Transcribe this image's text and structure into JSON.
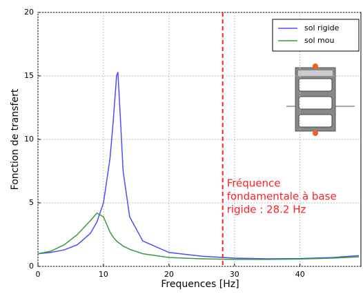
{
  "chart_data": {
    "type": "line",
    "xlabel": "Frequences [Hz]",
    "ylabel": "Fonction de transfert",
    "x": [
      0,
      2,
      4,
      6,
      8,
      9,
      10,
      11,
      11.5,
      12,
      12.2,
      12.5,
      13,
      14,
      16,
      20,
      25,
      30,
      35,
      40,
      45,
      49
    ],
    "series": [
      {
        "name": "sol rigide",
        "color": "#4a4aff",
        "values": [
          1.0,
          1.1,
          1.3,
          1.7,
          2.6,
          3.5,
          5.0,
          8.5,
          11.5,
          15.0,
          15.3,
          12.5,
          7.5,
          3.9,
          2.0,
          1.1,
          0.8,
          0.65,
          0.6,
          0.62,
          0.7,
          0.85
        ]
      },
      {
        "name": "sol mou",
        "color": "#3a9a3a",
        "values": [
          1.0,
          1.2,
          1.7,
          2.5,
          3.6,
          4.2,
          3.9,
          2.7,
          2.3,
          2.0,
          1.9,
          1.8,
          1.6,
          1.35,
          1.0,
          0.7,
          0.6,
          0.55,
          0.55,
          0.58,
          0.65,
          0.75
        ]
      }
    ],
    "xlim": [
      0,
      49.3
    ],
    "ylim": [
      0,
      20
    ],
    "xticks": [
      0,
      10,
      20,
      30,
      40
    ],
    "yticks": [
      0,
      5,
      10,
      15,
      20
    ],
    "grid": true,
    "legend": "upper right",
    "vline": {
      "x": 28.2,
      "color": "#ff2020",
      "label": [
        "Fréquence",
        "fondamentale à base",
        "rigide : 28.2 Hz"
      ]
    }
  }
}
